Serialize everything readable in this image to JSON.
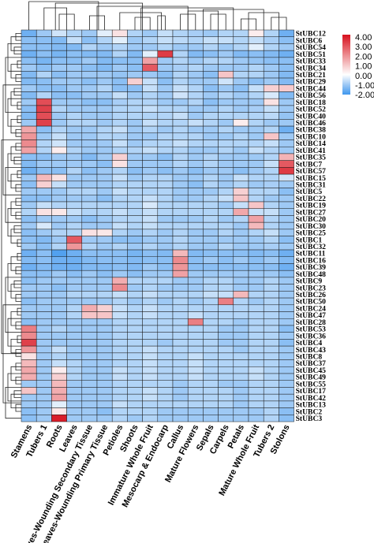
{
  "chart_data": {
    "type": "heatmap",
    "title": "",
    "xlabel": "",
    "ylabel": "",
    "columns": [
      "Stamens",
      "Tubers 1",
      "Roots",
      "Leaves",
      "Leaves-Wounding Secondary Tissue",
      "Leaves-Wounding Primary Tissue",
      "Petioles",
      "Shoots",
      "Immature Whole Fruit",
      "Mesocarp & Endocarp",
      "Callus",
      "Mature Flowers",
      "Sepals",
      "Carpels",
      "Petals",
      "Mature Whole Fruit",
      "Tubers 2",
      "Stolons"
    ],
    "rows": [
      "StUBC12",
      "StUBC6",
      "StUBC54",
      "StUBC51",
      "StUBC33",
      "StUBC34",
      "StUBC21",
      "StUBC29",
      "StUBC44",
      "StUBC56",
      "StUBC18",
      "StUBC52",
      "StUBC40",
      "StUBC46",
      "StUBC38",
      "StUBC10",
      "StUBC14",
      "StUBC41",
      "StUBC35",
      "StUBC7",
      "StUBC57",
      "StUBC15",
      "StUBC31",
      "StUBC5",
      "StUBC22",
      "StUBC19",
      "StUBC27",
      "StUBC20",
      "StUBC30",
      "StUBC25",
      "StUBC1",
      "StUBC32",
      "StUBC11",
      "StUBC16",
      "StUBC39",
      "StUBC48",
      "StUBC9",
      "StUBC23",
      "StUBC26",
      "StUBC50",
      "StUBC24",
      "StUBC47",
      "StUBC28",
      "StUBC53",
      "StUBC36",
      "StUBC4",
      "StUBC43",
      "StUBC8",
      "StUBC37",
      "StUBC45",
      "StUBC49",
      "StUBC55",
      "StUBC17",
      "StUBC42",
      "StUBC13",
      "StUBC2",
      "StUBC3"
    ],
    "values": [
      [
        -1.5,
        -1.0,
        -0.5,
        -0.8,
        -1.0,
        -0.3,
        0.5,
        -0.8,
        -1.0,
        -0.6,
        -0.8,
        -0.9,
        -1.0,
        -0.8,
        -0.8,
        0.3,
        -0.8,
        -1.5
      ],
      [
        -1.2,
        -1.2,
        -1.3,
        -0.6,
        -1.2,
        -0.8,
        -0.3,
        -1.0,
        -0.8,
        -0.6,
        -0.7,
        -0.8,
        -0.6,
        -0.6,
        -0.8,
        -0.6,
        -0.9,
        -1.2
      ],
      [
        -1.2,
        -1.2,
        -1.3,
        -1.3,
        -0.8,
        -1.0,
        -0.8,
        -1.0,
        -1.0,
        -0.8,
        -1.0,
        -1.0,
        -0.8,
        -1.0,
        -0.8,
        -0.3,
        -0.8,
        -1.0
      ],
      [
        -1.5,
        -1.2,
        -1.4,
        -1.2,
        -1.3,
        -1.3,
        -0.8,
        -1.3,
        -0.3,
        3.3,
        -0.8,
        -1.3,
        -1.2,
        -1.0,
        -1.3,
        -1.2,
        -1.3,
        -1.5
      ],
      [
        -1.2,
        -1.4,
        -1.2,
        -1.2,
        -1.0,
        -1.3,
        -1.2,
        -1.2,
        1.6,
        -1.0,
        -0.8,
        -1.0,
        -0.8,
        -0.8,
        -1.0,
        -1.1,
        -1.2,
        -1.2
      ],
      [
        -1.0,
        -1.2,
        -1.0,
        -1.0,
        -1.2,
        -1.3,
        -1.0,
        -1.2,
        2.8,
        -1.0,
        -0.9,
        -0.8,
        -1.0,
        -1.0,
        -1.0,
        -0.8,
        -1.0,
        -1.2
      ],
      [
        -1.3,
        -0.8,
        -1.2,
        -1.0,
        -1.0,
        -1.0,
        -1.1,
        -1.0,
        -1.0,
        -1.2,
        -0.8,
        -1.0,
        -1.2,
        1.0,
        -0.8,
        -0.8,
        -1.0,
        -1.3
      ],
      [
        -1.3,
        -1.2,
        -1.0,
        -1.0,
        -1.2,
        -1.0,
        -1.2,
        0.8,
        -0.6,
        -1.2,
        -0.8,
        -1.0,
        -1.0,
        -0.5,
        -1.0,
        -1.2,
        -1.0,
        -1.3
      ],
      [
        -1.0,
        -1.2,
        -1.2,
        -1.0,
        -1.0,
        -0.8,
        -1.2,
        -1.2,
        -0.6,
        -1.0,
        -0.6,
        -0.8,
        -1.2,
        -1.0,
        -1.2,
        -0.6,
        0.8,
        0.9
      ],
      [
        -1.3,
        -0.8,
        -1.2,
        -1.2,
        -1.0,
        -1.0,
        -0.6,
        -1.0,
        -0.8,
        -1.0,
        -0.5,
        -0.8,
        -1.0,
        -0.8,
        -1.0,
        -0.8,
        -0.4,
        -1.3
      ],
      [
        -1.0,
        3.0,
        -1.0,
        -1.0,
        -1.2,
        -1.2,
        -0.9,
        -0.8,
        -0.8,
        -1.0,
        -1.0,
        -0.8,
        -1.2,
        -1.0,
        -1.0,
        -1.0,
        0.5,
        -1.0
      ],
      [
        -1.2,
        3.2,
        -0.8,
        -1.0,
        -1.0,
        -1.0,
        -0.8,
        -0.8,
        -0.6,
        -0.8,
        -0.8,
        -1.0,
        -1.0,
        -0.8,
        -1.0,
        -0.9,
        -0.6,
        -1.0
      ],
      [
        -1.3,
        3.0,
        -1.0,
        -0.8,
        -1.0,
        -1.0,
        -0.8,
        -0.8,
        -0.8,
        -0.8,
        -0.6,
        -1.0,
        -0.8,
        -0.8,
        -0.8,
        -0.8,
        -0.7,
        -1.1
      ],
      [
        -1.0,
        3.2,
        -1.0,
        -0.8,
        -0.8,
        -1.0,
        -0.8,
        -1.0,
        -0.6,
        -0.8,
        -0.8,
        -0.6,
        -0.8,
        -1.0,
        0.3,
        -0.8,
        -1.0,
        -1.0
      ],
      [
        1.5,
        -1.2,
        -0.8,
        -1.0,
        -1.0,
        -0.8,
        -0.6,
        -1.0,
        -0.8,
        -1.0,
        -0.8,
        -1.0,
        -1.0,
        -0.8,
        -1.0,
        -1.0,
        -0.8,
        -1.5
      ],
      [
        1.8,
        -1.0,
        -0.6,
        -1.0,
        -1.0,
        -0.8,
        -0.8,
        -1.0,
        -1.0,
        -0.8,
        -0.8,
        -0.8,
        -1.0,
        -1.0,
        -0.8,
        -1.0,
        1.0,
        -1.0
      ],
      [
        2.0,
        -0.8,
        -0.5,
        -1.0,
        -1.0,
        -1.0,
        -0.6,
        -1.0,
        -0.8,
        -0.8,
        -0.6,
        -0.8,
        -0.8,
        -0.8,
        -0.8,
        -0.8,
        -0.6,
        -1.0
      ],
      [
        1.6,
        -0.8,
        0.3,
        -0.8,
        -1.0,
        -1.0,
        -0.8,
        -0.8,
        -0.6,
        -0.8,
        -0.8,
        -1.0,
        -1.0,
        -0.8,
        -1.0,
        -0.6,
        -0.8,
        -1.0
      ],
      [
        -1.2,
        -1.2,
        -1.0,
        -1.0,
        -1.3,
        -1.0,
        0.8,
        -1.0,
        -1.0,
        -1.2,
        -0.8,
        -1.0,
        -0.8,
        -1.0,
        -1.0,
        -1.0,
        -0.8,
        1.3
      ],
      [
        -1.3,
        -1.0,
        -1.0,
        -1.0,
        -1.0,
        -1.2,
        0.5,
        -1.0,
        -1.0,
        -1.0,
        -0.8,
        -1.0,
        -0.8,
        -1.0,
        -1.0,
        -1.0,
        -0.6,
        2.8
      ],
      [
        -1.5,
        -1.2,
        -1.2,
        -0.8,
        -1.2,
        -1.0,
        -0.8,
        -1.2,
        -1.0,
        -1.2,
        -1.0,
        -1.2,
        -1.0,
        -1.0,
        -1.2,
        -1.0,
        -0.8,
        3.3
      ],
      [
        -1.0,
        1.2,
        0.5,
        -1.0,
        -1.0,
        -1.0,
        -0.6,
        -1.0,
        -0.8,
        -0.8,
        -1.0,
        -1.0,
        -0.8,
        -1.0,
        -0.6,
        -0.8,
        -0.8,
        -0.5
      ],
      [
        -1.2,
        0.8,
        -0.6,
        -1.0,
        -1.0,
        -1.0,
        -0.8,
        -0.8,
        -0.8,
        -0.8,
        -1.0,
        -1.2,
        -0.8,
        -1.0,
        -0.8,
        -1.0,
        -0.9,
        -1.0
      ],
      [
        -1.0,
        -1.0,
        -1.0,
        -0.8,
        -0.8,
        -1.0,
        -0.6,
        -0.8,
        -0.8,
        -0.8,
        -1.0,
        -1.0,
        -1.0,
        -0.8,
        0.8,
        -0.8,
        -0.8,
        -1.2
      ],
      [
        -1.2,
        -1.2,
        -1.0,
        -1.0,
        -1.0,
        -1.2,
        -0.8,
        -0.8,
        -0.6,
        -0.8,
        -1.0,
        -1.0,
        -0.8,
        -0.6,
        1.0,
        -0.8,
        -1.0,
        -1.0
      ],
      [
        -1.0,
        -0.6,
        -0.8,
        -0.8,
        -0.8,
        -0.8,
        -0.8,
        -0.8,
        -0.4,
        -0.8,
        -0.8,
        -0.8,
        -0.8,
        -1.0,
        -0.6,
        1.0,
        -0.8,
        -1.0
      ],
      [
        -0.8,
        0.5,
        0.4,
        -0.6,
        -0.8,
        -0.8,
        -0.6,
        -0.8,
        -0.6,
        -0.8,
        -0.8,
        -0.8,
        -0.8,
        -0.8,
        1.5,
        -0.6,
        -0.6,
        -1.0
      ],
      [
        -1.2,
        -1.0,
        -1.0,
        -1.0,
        -1.2,
        -1.0,
        -0.8,
        -0.8,
        -0.6,
        -1.0,
        -1.0,
        -1.0,
        -0.8,
        -1.0,
        -0.8,
        1.6,
        -0.8,
        -1.0
      ],
      [
        -1.0,
        -0.4,
        -1.0,
        -0.8,
        -1.0,
        -1.0,
        -0.6,
        -0.8,
        -0.6,
        -0.8,
        -0.8,
        -0.8,
        -0.8,
        -0.8,
        -1.0,
        1.2,
        -0.8,
        -1.0
      ],
      [
        -1.2,
        -1.0,
        -0.8,
        -0.8,
        0.5,
        0.4,
        -0.8,
        -1.0,
        -0.8,
        -1.0,
        -0.8,
        -1.0,
        -1.0,
        -0.8,
        -1.0,
        -0.8,
        -0.6,
        -1.0
      ],
      [
        -1.2,
        -1.3,
        -1.0,
        2.8,
        -1.0,
        -1.0,
        -1.2,
        -1.2,
        -1.0,
        -1.0,
        -0.8,
        -1.0,
        -1.0,
        -1.0,
        -1.0,
        -1.0,
        -0.8,
        -1.2
      ],
      [
        -1.0,
        -1.2,
        -0.8,
        1.8,
        -0.8,
        -1.0,
        -0.8,
        -1.0,
        -0.8,
        -1.0,
        -0.8,
        -1.0,
        -1.0,
        -0.8,
        -1.0,
        -1.0,
        -0.9,
        -1.0
      ],
      [
        -1.5,
        -1.2,
        -1.8,
        -1.5,
        -1.2,
        -1.2,
        -1.2,
        -1.4,
        -1.2,
        -1.3,
        1.2,
        -1.3,
        -1.2,
        -1.2,
        -1.2,
        -1.3,
        -1.2,
        -1.5
      ],
      [
        -1.3,
        -1.2,
        -1.5,
        -1.5,
        -1.3,
        -1.2,
        -1.2,
        -1.3,
        -1.2,
        -1.2,
        2.0,
        -1.2,
        -1.0,
        -1.2,
        -1.0,
        -1.2,
        -1.0,
        -1.3
      ],
      [
        -1.5,
        -1.3,
        -1.5,
        -1.5,
        -1.3,
        -1.3,
        -1.2,
        -1.3,
        -1.0,
        -1.2,
        1.8,
        -1.2,
        -1.2,
        -1.2,
        -1.2,
        -1.2,
        -1.2,
        -1.5
      ],
      [
        -1.2,
        -1.2,
        -1.0,
        -1.2,
        -1.0,
        -1.2,
        -1.0,
        -1.2,
        -1.0,
        -1.0,
        1.6,
        -1.0,
        -1.0,
        -1.0,
        -1.0,
        -1.0,
        -1.0,
        -1.2
      ],
      [
        -1.2,
        -1.0,
        -1.0,
        -1.0,
        -1.0,
        -1.0,
        1.4,
        -0.8,
        -0.8,
        -0.8,
        -1.0,
        -1.0,
        -0.8,
        -0.8,
        -1.0,
        -1.0,
        -0.8,
        -1.0
      ],
      [
        -1.0,
        -1.0,
        -1.2,
        -1.0,
        -1.0,
        -1.0,
        2.0,
        -1.0,
        -0.8,
        -1.0,
        -1.0,
        -1.0,
        -0.8,
        -0.8,
        -1.0,
        -1.0,
        -0.8,
        -1.0
      ],
      [
        -1.0,
        -1.0,
        -1.0,
        -0.8,
        -0.8,
        -0.8,
        -0.6,
        -0.8,
        -0.6,
        -0.8,
        -0.8,
        -0.8,
        -0.6,
        -0.6,
        1.2,
        -0.8,
        -0.8,
        -1.0
      ],
      [
        -1.2,
        -1.0,
        -1.0,
        -1.0,
        -1.0,
        -1.0,
        -0.8,
        -1.0,
        -0.8,
        -1.0,
        -0.8,
        -1.0,
        -0.8,
        2.2,
        -0.8,
        -1.0,
        -0.8,
        -1.0
      ],
      [
        -1.0,
        -1.0,
        -1.0,
        -0.8,
        1.4,
        0.8,
        -0.6,
        -0.8,
        -0.6,
        -0.8,
        -0.8,
        -0.8,
        -0.8,
        -0.8,
        -0.8,
        -0.8,
        -0.8,
        -1.0
      ],
      [
        -1.0,
        -1.0,
        -1.0,
        -0.8,
        1.0,
        1.0,
        -0.6,
        -0.8,
        -0.6,
        -0.8,
        -0.8,
        -0.6,
        -0.8,
        -0.8,
        -0.8,
        -0.8,
        -0.8,
        -1.0
      ],
      [
        -1.2,
        -1.0,
        -1.0,
        -1.0,
        -1.0,
        -1.0,
        -0.8,
        -0.8,
        -0.8,
        -0.8,
        -0.8,
        2.2,
        -0.8,
        -0.8,
        -1.0,
        -0.8,
        -0.8,
        -1.0
      ],
      [
        2.2,
        -1.0,
        -0.8,
        -1.0,
        -1.0,
        -1.0,
        -0.8,
        -0.8,
        -0.8,
        -0.8,
        -0.8,
        -0.8,
        -0.8,
        -1.0,
        -1.0,
        -0.8,
        -0.8,
        -1.2
      ],
      [
        2.0,
        -1.0,
        -1.0,
        -1.0,
        -1.0,
        -1.0,
        -0.8,
        -0.8,
        -0.8,
        -0.8,
        -0.8,
        -0.8,
        -0.8,
        -1.0,
        -1.0,
        -0.8,
        -0.8,
        -1.0
      ],
      [
        3.2,
        -1.0,
        -1.0,
        -1.0,
        -1.0,
        -1.0,
        -0.8,
        -0.8,
        -0.8,
        -1.0,
        -0.8,
        -0.8,
        -0.8,
        -1.0,
        -1.0,
        -0.8,
        -0.8,
        -1.2
      ],
      [
        1.8,
        -1.0,
        -0.6,
        -1.0,
        -1.0,
        -1.0,
        -0.8,
        -0.8,
        -0.6,
        -0.8,
        -0.8,
        -0.8,
        -0.8,
        -0.8,
        -1.0,
        -0.8,
        -0.8,
        -1.0
      ],
      [
        0.5,
        -1.0,
        -0.8,
        -1.0,
        -1.0,
        -1.0,
        -0.8,
        -0.8,
        -0.6,
        -0.8,
        -0.8,
        -0.6,
        -0.8,
        -0.8,
        -0.8,
        -0.8,
        -0.8,
        -1.0
      ],
      [
        1.2,
        -1.0,
        -0.6,
        -0.8,
        -1.0,
        -1.0,
        -0.8,
        -0.8,
        -0.6,
        -0.8,
        -0.8,
        -0.6,
        -0.8,
        -0.8,
        -0.8,
        -0.8,
        -0.8,
        -1.0
      ],
      [
        1.5,
        -1.0,
        0.3,
        -0.8,
        -1.0,
        -1.0,
        -0.6,
        -0.8,
        -0.6,
        -0.8,
        -0.8,
        -0.6,
        -0.8,
        -0.8,
        -0.8,
        -0.6,
        -0.8,
        -1.0
      ],
      [
        1.4,
        -1.0,
        0.8,
        -0.8,
        -1.0,
        -1.0,
        -0.6,
        -0.8,
        -0.6,
        -0.8,
        -0.8,
        -0.6,
        -0.8,
        -0.8,
        -0.8,
        -0.6,
        -0.8,
        -1.0
      ],
      [
        -1.0,
        -1.0,
        1.2,
        -1.0,
        -1.0,
        -1.0,
        -0.8,
        -0.8,
        -0.8,
        -0.8,
        -1.0,
        -0.8,
        -0.8,
        -1.0,
        -1.0,
        -0.8,
        -0.8,
        -1.0
      ],
      [
        1.0,
        -1.0,
        1.4,
        -1.0,
        -1.0,
        -1.0,
        -0.8,
        -0.8,
        -0.6,
        -0.8,
        -1.0,
        -0.8,
        -0.8,
        -0.8,
        -1.0,
        -0.8,
        -0.8,
        -1.0
      ],
      [
        -1.0,
        -1.0,
        1.6,
        -1.0,
        -1.0,
        -1.0,
        -0.8,
        -0.8,
        -0.6,
        -0.8,
        -1.0,
        -0.8,
        -0.8,
        -0.8,
        -1.0,
        -0.8,
        -0.8,
        -1.0
      ],
      [
        -1.0,
        -1.0,
        -0.3,
        -1.0,
        -1.0,
        -1.0,
        -0.6,
        -0.8,
        -0.8,
        -0.8,
        -0.8,
        -0.8,
        -0.8,
        -0.8,
        -1.0,
        -0.8,
        -0.8,
        -1.0
      ],
      [
        -1.2,
        -1.0,
        0.4,
        -1.0,
        -1.0,
        -1.2,
        -0.8,
        -0.8,
        -0.8,
        -1.0,
        -1.0,
        -1.0,
        -1.0,
        -1.0,
        -1.0,
        -1.0,
        -0.8,
        -1.2
      ],
      [
        -1.2,
        -1.0,
        3.8,
        -1.0,
        -1.0,
        -1.0,
        -0.8,
        -1.0,
        -0.8,
        -1.0,
        -1.0,
        -1.0,
        -1.0,
        -1.0,
        -1.0,
        -1.0,
        -0.8,
        -1.2
      ]
    ],
    "color_scale": {
      "min": -2.0,
      "max": 4.0,
      "stops": [
        {
          "value": -2.0,
          "color": "#3f97ee"
        },
        {
          "value": -1.0,
          "color": "#9ec9f5"
        },
        {
          "value": 0.0,
          "color": "#ffffff"
        },
        {
          "value": 2.0,
          "color": "#ec8a8e"
        },
        {
          "value": 4.0,
          "color": "#d7101e"
        }
      ],
      "tick_labels": [
        "4.00",
        "3.00",
        "2.00",
        "1.00",
        "0.00",
        "-1.00",
        "-2.00"
      ]
    },
    "dendrograms": {
      "rows": true,
      "columns": true
    },
    "grid": true,
    "legend": "top-right"
  }
}
